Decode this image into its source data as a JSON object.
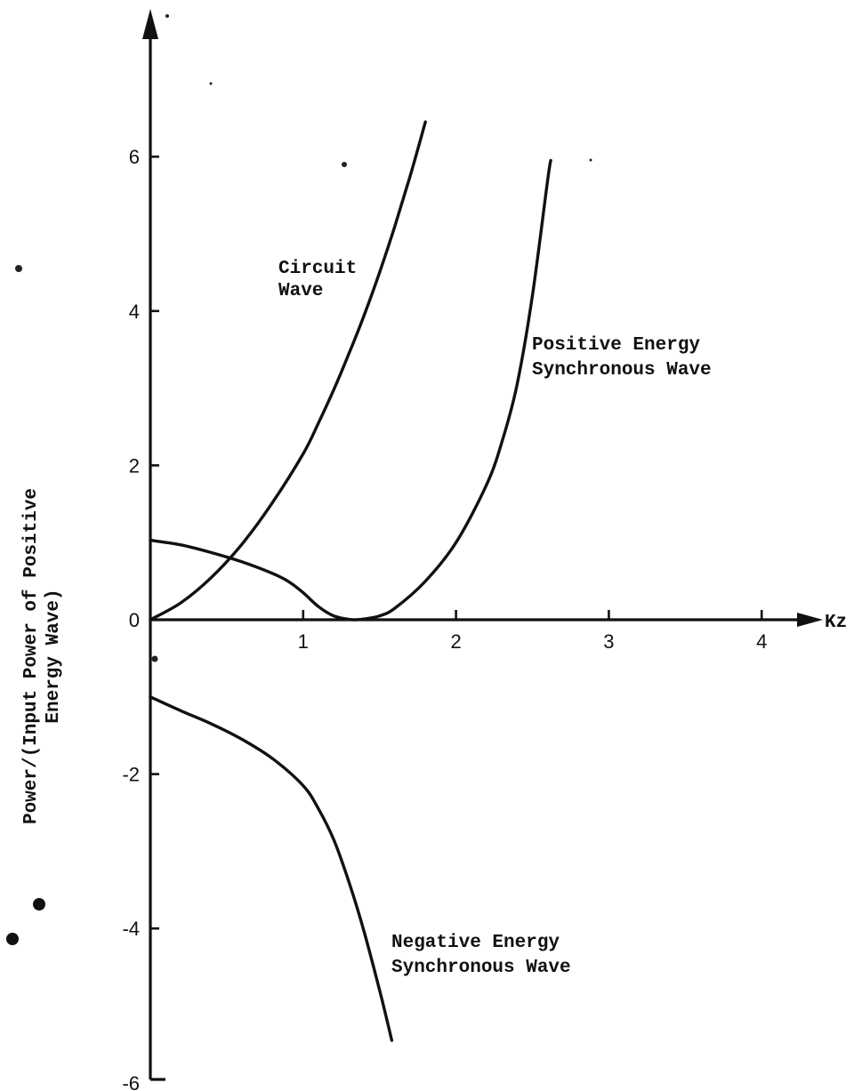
{
  "chart_data": {
    "type": "line",
    "xlabel": "Kz",
    "ylabel_line1": "Power/(Input Power of Positive",
    "ylabel_line2": "Energy Wave)",
    "xlim": [
      0,
      4.6
    ],
    "ylim": [
      -6,
      7.9
    ],
    "x_ticks": [
      {
        "value": 1,
        "label": "1"
      },
      {
        "value": 2,
        "label": "2"
      },
      {
        "value": 3,
        "label": "3"
      },
      {
        "value": 4,
        "label": "4"
      }
    ],
    "y_ticks": [
      {
        "value": 6,
        "label": "6"
      },
      {
        "value": 4,
        "label": "4"
      },
      {
        "value": 2,
        "label": "2"
      },
      {
        "value": 0,
        "label": "0"
      },
      {
        "value": -2,
        "label": "-2"
      },
      {
        "value": -4,
        "label": "-4"
      },
      {
        "value": -6,
        "label": "-6"
      }
    ],
    "grid": false,
    "series": [
      {
        "id": "circuit",
        "x": [
          0,
          0.2,
          0.4,
          0.6,
          0.8,
          1.0,
          1.1,
          1.2,
          1.3,
          1.4,
          1.5,
          1.6,
          1.7,
          1.8
        ],
        "y": [
          0,
          0.22,
          0.55,
          0.98,
          1.52,
          2.15,
          2.55,
          2.98,
          3.45,
          3.95,
          4.5,
          5.1,
          5.75,
          6.45
        ]
      },
      {
        "id": "positive",
        "x": [
          0,
          0.2,
          0.4,
          0.6,
          0.8,
          0.9,
          1.0,
          1.1,
          1.2,
          1.3,
          1.35,
          1.4,
          1.5,
          1.6,
          1.8,
          2.0,
          2.2,
          2.3,
          2.4,
          2.5,
          2.6,
          2.62
        ],
        "y": [
          1.03,
          0.97,
          0.87,
          0.75,
          0.6,
          0.5,
          0.35,
          0.17,
          0.05,
          0.005,
          0,
          0.01,
          0.05,
          0.15,
          0.5,
          1.0,
          1.75,
          2.3,
          3.05,
          4.2,
          5.7,
          5.95
        ]
      },
      {
        "id": "negative",
        "x": [
          0,
          0.2,
          0.4,
          0.6,
          0.8,
          1.0,
          1.1,
          1.2,
          1.3,
          1.4,
          1.5,
          1.58
        ],
        "y": [
          -1.0,
          -1.18,
          -1.35,
          -1.55,
          -1.8,
          -2.15,
          -2.45,
          -2.85,
          -3.4,
          -4.05,
          -4.8,
          -5.45
        ]
      }
    ],
    "annotations": [
      {
        "for": "circuit",
        "lines": [
          "Circuit",
          "Wave"
        ]
      },
      {
        "for": "positive",
        "lines": [
          "Positive Energy",
          "Synchronous Wave"
        ]
      },
      {
        "for": "negative",
        "lines": [
          "Negative Energy",
          "Synchronous Wave"
        ]
      }
    ]
  }
}
